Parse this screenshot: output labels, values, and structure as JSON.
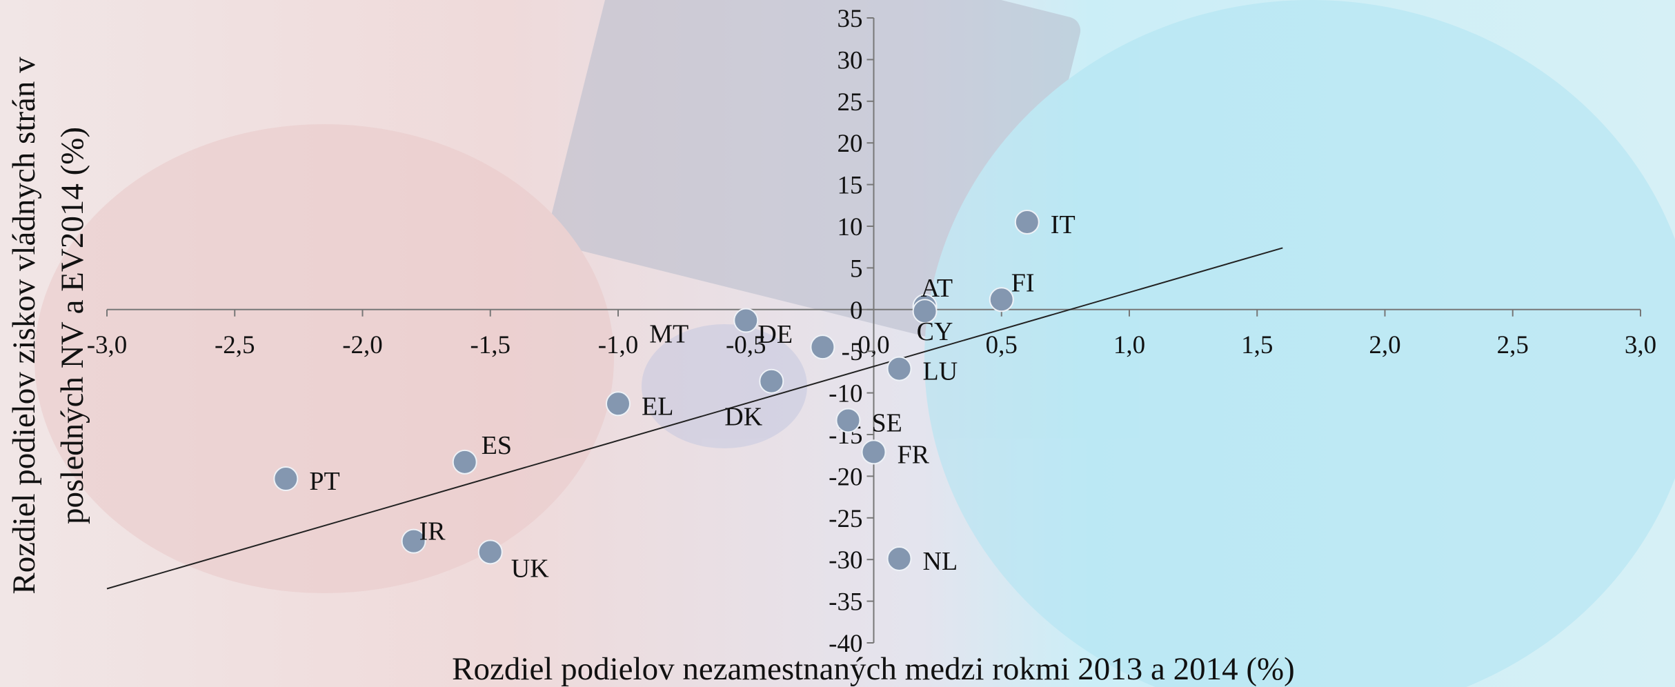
{
  "chart_data": {
    "type": "scatter",
    "x_label": "Rozdiel podielov nezamestnaných medzi rokmi 2013 a 2014 (%)",
    "y_label": [
      "Rozdiel podielov ziskov vládnych strán v",
      "posledných NV a EV2014 (%)"
    ],
    "color": "#8497b0",
    "points": [
      {
        "label": "IT",
        "x": 0.6,
        "y": 10.5
      },
      {
        "label": "FI",
        "x": 0.5,
        "y": 1.2
      },
      {
        "label": "AT",
        "x": 0.2,
        "y": 0.4
      },
      {
        "label": "CY",
        "x": 0.2,
        "y": -0.2
      },
      {
        "label": "MT",
        "x": -0.5,
        "y": -1.3
      },
      {
        "label": "DE",
        "x": -0.2,
        "y": -4.5
      },
      {
        "label": "DK",
        "x": -0.4,
        "y": -8.6
      },
      {
        "label": "LU",
        "x": 0.1,
        "y": -7.1
      },
      {
        "label": "EL",
        "x": -1.0,
        "y": -11.3
      },
      {
        "label": "SE",
        "x": -0.1,
        "y": -13.3
      },
      {
        "label": "FR",
        "x": 0.0,
        "y": -17.1
      },
      {
        "label": "ES",
        "x": -1.6,
        "y": -18.3
      },
      {
        "label": "PT",
        "x": -2.3,
        "y": -20.3
      },
      {
        "label": "IR",
        "x": -1.8,
        "y": -27.8
      },
      {
        "label": "UK",
        "x": -1.5,
        "y": -29.1
      },
      {
        "label": "NL",
        "x": 0.1,
        "y": -29.9
      }
    ],
    "trendline": {
      "x": [
        -3.0,
        1.6
      ],
      "y": [
        -33.5,
        7.4
      ]
    },
    "xlim": [
      -3.0,
      3.0
    ],
    "ylim": [
      -40,
      35
    ],
    "xticks": [
      {
        "value": -3.0,
        "label": "-3,0"
      },
      {
        "value": -2.5,
        "label": "-2,5"
      },
      {
        "value": -2.0,
        "label": "-2,0"
      },
      {
        "value": -1.5,
        "label": "-1,5"
      },
      {
        "value": -1.0,
        "label": "-1,0"
      },
      {
        "value": -0.5,
        "label": "-0,5"
      },
      {
        "value": 0.0,
        "label": "0,0"
      },
      {
        "value": 0.5,
        "label": "0,5"
      },
      {
        "value": 1.0,
        "label": "1,0"
      },
      {
        "value": 1.5,
        "label": "1,5"
      },
      {
        "value": 2.0,
        "label": "2,0"
      },
      {
        "value": 2.5,
        "label": "2,5"
      },
      {
        "value": 3.0,
        "label": "3,0"
      }
    ],
    "yticks": [
      35,
      30,
      25,
      20,
      15,
      10,
      5,
      0,
      -5,
      -10,
      -15,
      -20,
      -25,
      -30,
      -35,
      -40
    ]
  }
}
